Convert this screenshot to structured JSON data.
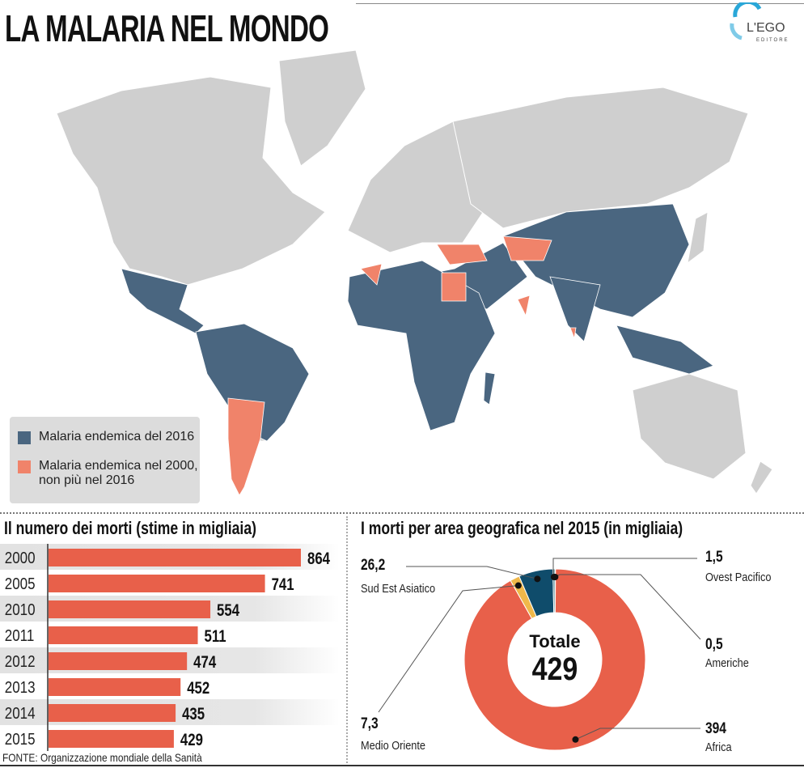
{
  "title": "LA MALARIA NEL MONDO",
  "logo": {
    "name": "L'EGO",
    "sub": "EDITORE"
  },
  "colors": {
    "endemic_2016": "#4a6680",
    "endemic_2000_only": "#f0836a",
    "land": "#cfcfcf",
    "bar": "#e8604a",
    "africa": "#e8604a",
    "sud_est": "#0f4c6b",
    "medio_oriente": "#f0b84a",
    "americhe": "#4caf50",
    "ovest_pacifico": "#2c6e7a"
  },
  "legend": [
    {
      "label": "Malaria endemica del 2016"
    },
    {
      "label_line1": "Malaria endemica nel 2000,",
      "label_line2": "non più nel 2016"
    }
  ],
  "source": "FONTE: Organizzazione mondiale della Sanità",
  "chart_data": [
    {
      "type": "bar",
      "title": "Il numero dei morti (stime in migliaia)",
      "categories": [
        "2000",
        "2005",
        "2010",
        "2011",
        "2012",
        "2013",
        "2014",
        "2015"
      ],
      "values": [
        864,
        741,
        554,
        511,
        474,
        452,
        435,
        429
      ],
      "orientation": "horizontal"
    },
    {
      "type": "pie",
      "title": "I morti per area geografica nel 2015 (in migliaia)",
      "center_label": "Totale",
      "center_value": "429",
      "slices": [
        {
          "name": "Americhe",
          "value": 0.5,
          "label": "0,5"
        },
        {
          "name": "Africa",
          "value": 394,
          "label": "394"
        },
        {
          "name": "Medio Oriente",
          "value": 7.3,
          "label": "7,3"
        },
        {
          "name": "Sud Est Asiatico",
          "value": 26.2,
          "label": "26,2"
        },
        {
          "name": "Ovest Pacifico",
          "value": 1.5,
          "label": "1,5"
        }
      ]
    }
  ]
}
